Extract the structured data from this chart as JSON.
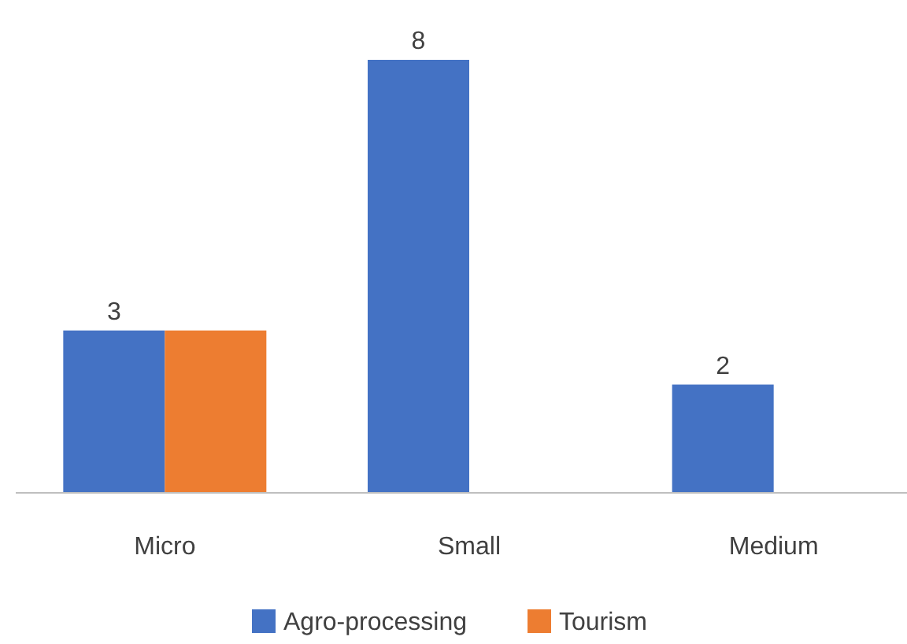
{
  "chart_data": {
    "type": "bar",
    "categories": [
      "Micro",
      "Small",
      "Medium"
    ],
    "series": [
      {
        "name": "Agro-processing",
        "color": "#4472c4",
        "values": [
          3,
          8,
          2
        ],
        "value_labels": [
          "3",
          "8",
          "2"
        ]
      },
      {
        "name": "Tourism",
        "color": "#ed7d31",
        "values": [
          3,
          null,
          null
        ],
        "value_labels": [
          null,
          null,
          null
        ]
      }
    ],
    "legend": "bottom",
    "grid": false
  }
}
